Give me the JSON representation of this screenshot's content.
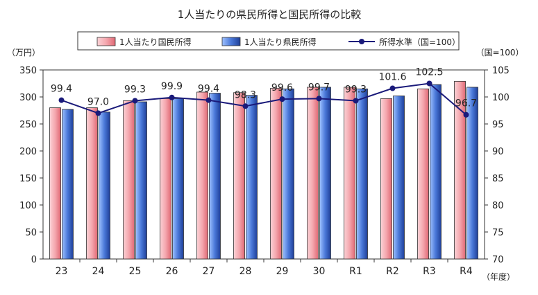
{
  "chart_data": {
    "type": "bar",
    "title": "1人当たりの県民所得と国民所得の比較",
    "categories": [
      "23",
      "24",
      "25",
      "26",
      "27",
      "28",
      "29",
      "30",
      "R1",
      "R2",
      "R3",
      "R4"
    ],
    "series": [
      {
        "name": "1人当たり国民所得",
        "axis": "left",
        "type": "bar",
        "color": "#f4a7ae",
        "values": [
          280,
          280,
          293,
          297,
          309,
          308,
          316,
          318,
          318,
          297,
          315,
          329
        ]
      },
      {
        "name": "1人当たり県民所得",
        "axis": "left",
        "type": "bar",
        "color": "#4a78d8",
        "values": [
          277,
          272,
          291,
          297,
          307,
          303,
          315,
          318,
          315,
          302,
          323,
          318
        ]
      },
      {
        "name": "所得水準（国=100）",
        "axis": "right",
        "type": "line",
        "color": "#1a1a7a",
        "values": [
          99.4,
          97.0,
          99.3,
          99.9,
          99.4,
          98.3,
          99.6,
          99.7,
          99.3,
          101.6,
          102.5,
          96.7
        ],
        "labels": [
          "99.4",
          "97.0",
          "99.3",
          "99.9",
          "99.4",
          "98.3",
          "99.6",
          "99.7",
          "99.3",
          "101.6",
          "102.5",
          "96.7"
        ]
      }
    ],
    "y_left": {
      "label": "（万円）",
      "min": 0,
      "max": 350,
      "ticks": [
        0,
        50,
        100,
        150,
        200,
        250,
        300,
        350
      ]
    },
    "y_right": {
      "label": "（国=100）",
      "min": 70,
      "max": 105,
      "ticks": [
        70,
        75,
        80,
        85,
        90,
        95,
        100,
        105
      ]
    },
    "xlabel": "（年度）",
    "grid": false,
    "legend": "top-center"
  }
}
